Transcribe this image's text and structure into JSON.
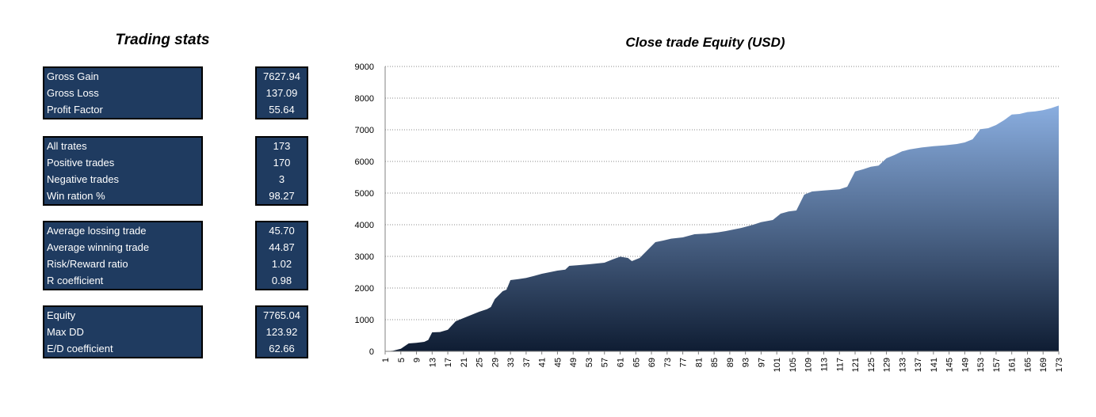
{
  "stats_title": "Trading stats",
  "stats_groups": [
    {
      "rows": [
        {
          "label": "Gross Gain",
          "value": "7627.94"
        },
        {
          "label": "Gross Loss",
          "value": "137.09"
        },
        {
          "label": "Profit Factor",
          "value": "55.64"
        }
      ]
    },
    {
      "rows": [
        {
          "label": "All trates",
          "value": "173"
        },
        {
          "label": "Positive trades",
          "value": "170"
        },
        {
          "label": "Negative trades",
          "value": "3"
        },
        {
          "label": "Win ration %",
          "value": "98.27"
        }
      ]
    },
    {
      "rows": [
        {
          "label": "Average lossing trade",
          "value": "45.70"
        },
        {
          "label": "Average winning trade",
          "value": "44.87"
        },
        {
          "label": "Risk/Reward ratio",
          "value": "1.02"
        },
        {
          "label": "R coefficient",
          "value": "0.98"
        }
      ]
    },
    {
      "rows": [
        {
          "label": "Equity",
          "value": "7765.04"
        },
        {
          "label": "Max DD",
          "value": "123.92"
        },
        {
          "label": "E/D coefficient",
          "value": "62.66"
        }
      ]
    }
  ],
  "colors": {
    "table_bg": "#1f3b60",
    "area_top": "#8aaee0",
    "area_bottom": "#0f1d33"
  },
  "chart_data": {
    "type": "area",
    "title": "Close trade Equity (USD)",
    "xlabel": "",
    "ylabel": "",
    "ylim": [
      0,
      9000
    ],
    "yticks": [
      0,
      1000,
      2000,
      3000,
      4000,
      5000,
      6000,
      7000,
      8000,
      9000
    ],
    "xlim": [
      1,
      173
    ],
    "xtick_step": 4,
    "grid": "horizontal-dotted",
    "legend": "none",
    "points": [
      [
        1,
        0
      ],
      [
        3,
        20
      ],
      [
        5,
        80
      ],
      [
        7,
        250
      ],
      [
        9,
        270
      ],
      [
        11,
        300
      ],
      [
        12,
        360
      ],
      [
        13,
        600
      ],
      [
        15,
        610
      ],
      [
        17,
        680
      ],
      [
        19,
        950
      ],
      [
        21,
        1050
      ],
      [
        23,
        1150
      ],
      [
        25,
        1250
      ],
      [
        27,
        1330
      ],
      [
        28,
        1400
      ],
      [
        29,
        1650
      ],
      [
        31,
        1900
      ],
      [
        32,
        1950
      ],
      [
        33,
        2250
      ],
      [
        35,
        2280
      ],
      [
        37,
        2320
      ],
      [
        39,
        2380
      ],
      [
        41,
        2450
      ],
      [
        43,
        2500
      ],
      [
        45,
        2550
      ],
      [
        47,
        2580
      ],
      [
        48,
        2700
      ],
      [
        50,
        2720
      ],
      [
        53,
        2750
      ],
      [
        57,
        2800
      ],
      [
        59,
        2900
      ],
      [
        61,
        2990
      ],
      [
        63,
        2950
      ],
      [
        64,
        2850
      ],
      [
        66,
        2950
      ],
      [
        68,
        3200
      ],
      [
        70,
        3450
      ],
      [
        72,
        3500
      ],
      [
        74,
        3560
      ],
      [
        77,
        3600
      ],
      [
        80,
        3700
      ],
      [
        83,
        3720
      ],
      [
        86,
        3760
      ],
      [
        88,
        3800
      ],
      [
        90,
        3850
      ],
      [
        92,
        3900
      ],
      [
        95,
        4000
      ],
      [
        97,
        4080
      ],
      [
        100,
        4150
      ],
      [
        102,
        4350
      ],
      [
        104,
        4420
      ],
      [
        106,
        4450
      ],
      [
        108,
        4950
      ],
      [
        110,
        5050
      ],
      [
        113,
        5080
      ],
      [
        117,
        5120
      ],
      [
        119,
        5200
      ],
      [
        121,
        5680
      ],
      [
        123,
        5750
      ],
      [
        125,
        5830
      ],
      [
        127,
        5870
      ],
      [
        129,
        6100
      ],
      [
        131,
        6200
      ],
      [
        133,
        6320
      ],
      [
        135,
        6380
      ],
      [
        138,
        6440
      ],
      [
        141,
        6480
      ],
      [
        144,
        6510
      ],
      [
        147,
        6550
      ],
      [
        149,
        6600
      ],
      [
        151,
        6700
      ],
      [
        153,
        7020
      ],
      [
        155,
        7050
      ],
      [
        157,
        7150
      ],
      [
        159,
        7300
      ],
      [
        161,
        7480
      ],
      [
        163,
        7500
      ],
      [
        165,
        7560
      ],
      [
        167,
        7580
      ],
      [
        169,
        7620
      ],
      [
        171,
        7680
      ],
      [
        173,
        7765
      ]
    ]
  }
}
